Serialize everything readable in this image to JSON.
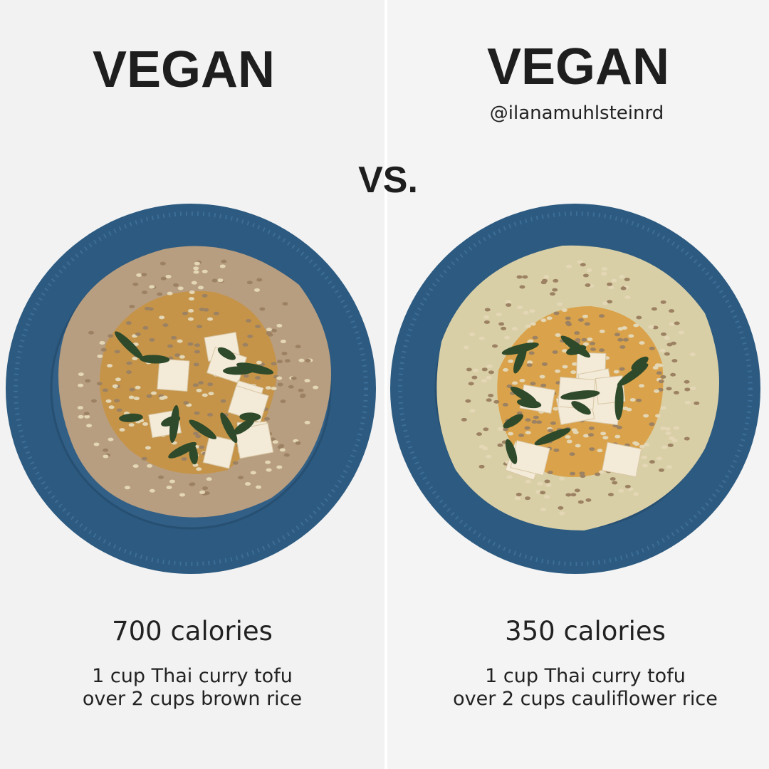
{
  "left": {
    "title": "VEGAN",
    "calories": "700 calories",
    "description": [
      "1 cup Thai curry tofu",
      "over 2 cups brown rice"
    ]
  },
  "center": {
    "label": "VS."
  },
  "right": {
    "title": "VEGAN",
    "handle": "@ilanamuhlsteinrd",
    "calories": "350 calories",
    "description": [
      "1 cup Thai curry tofu",
      "over 2 cups cauliflower rice"
    ]
  }
}
